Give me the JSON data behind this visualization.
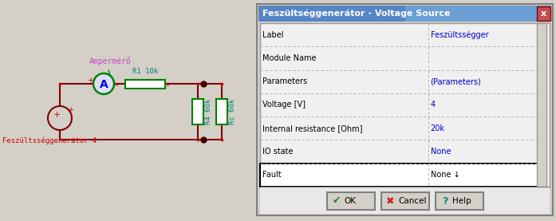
{
  "background_color": "#d4d0c8",
  "dot_color": "#9eaabb",
  "circuit": {
    "wire_color": "#800000",
    "resistor_color": "#008000",
    "resistor_fill": "#ffffff",
    "ammeter_circle_color": "#008000",
    "voltage_source_color": "#800000",
    "label_color_purple": "#cc44cc",
    "label_color_red": "#cc0000",
    "label_color_teal": "#008080",
    "junction_color": "#400000",
    "plus_color": "#cc0000",
    "ammeter_label": "Ampermérő",
    "voltage_label": "Feszültsséggenerátor 4",
    "r1_label": "R1 10k",
    "r4_label": "R4 60k",
    "rc_label": "Rc 60k"
  },
  "dialog": {
    "title": "Feszültséggenerátor - Voltage Source",
    "rows": [
      {
        "label": "Label",
        "value": "Feszültsségger",
        "value_color": "#0000cc"
      },
      {
        "label": "Module Name",
        "value": "",
        "value_color": "#0000cc"
      },
      {
        "label": "Parameters",
        "value": "(Parameters)",
        "value_color": "#0000cc"
      },
      {
        "label": "Voltage [V]",
        "value": "4",
        "value_color": "#0000cc"
      },
      {
        "label": "Internal resistance [Ohm]",
        "value": "20k",
        "value_color": "#0000cc"
      },
      {
        "label": "IO state",
        "value": "None",
        "value_color": "#0000cc"
      },
      {
        "label": "Fault",
        "value": "None ↓",
        "value_color": "#000000",
        "selected": true
      }
    ],
    "buttons": [
      {
        "label": "OK",
        "icon": "✔",
        "icon_color": "#228822"
      },
      {
        "label": "Cancel",
        "icon": "✖",
        "icon_color": "#cc2222"
      },
      {
        "label": "Help",
        "icon": "?",
        "icon_color": "#008888"
      }
    ]
  }
}
